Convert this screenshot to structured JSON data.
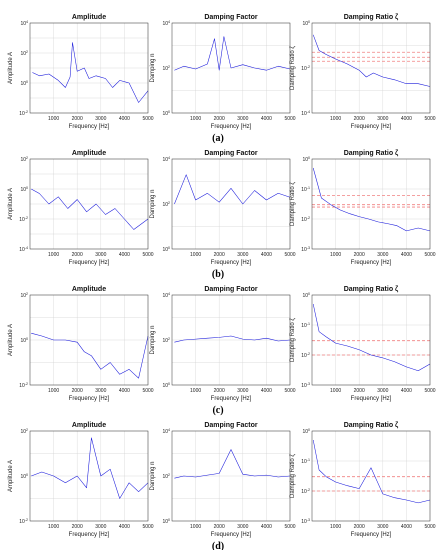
{
  "figure": {
    "row_labels": [
      "(a)",
      "(b)",
      "(c)",
      "(d)"
    ],
    "colors": {
      "series": "#1a1adb",
      "reference_line": "#f08080",
      "grid": "#d4d4d4"
    }
  },
  "chart_data": [
    {
      "row": "a",
      "type": "line",
      "title": "Amplitude",
      "xlabel": "Frequency [Hz]",
      "ylabel": "Amplitude A",
      "xlim": [
        0,
        5000
      ],
      "ylim": [
        0.01,
        10000
      ],
      "log_y": true,
      "xticks": [
        "1000",
        "2000",
        "3000",
        "4000",
        "5000"
      ],
      "yticks": [
        "10^{-2}",
        "10^{0}",
        "10^{2}",
        "10^{4}"
      ],
      "grid": true,
      "series": [
        {
          "x": [
            100,
            400,
            800,
            1200,
            1500,
            1700,
            1800,
            2000,
            2300,
            2500,
            2800,
            3200,
            3500,
            3800,
            4200,
            4600,
            5000
          ],
          "y": [
            5,
            3,
            4,
            1.5,
            0.5,
            2.5,
            500,
            6,
            10,
            2,
            3,
            2,
            0.5,
            1.5,
            1,
            0.05,
            0.3
          ]
        }
      ]
    },
    {
      "row": "a",
      "type": "line",
      "title": "Damping Factor",
      "xlabel": "Frequency [Hz]",
      "ylabel": "Damping n",
      "xlim": [
        0,
        5000
      ],
      "ylim": [
        1,
        10000
      ],
      "log_y": true,
      "xticks": [
        "1000",
        "2000",
        "3000",
        "4000",
        "5000"
      ],
      "yticks": [
        "10^{0}",
        "10^{2}",
        "10^{4}"
      ],
      "grid": true,
      "series": [
        {
          "x": [
            100,
            500,
            1000,
            1500,
            1800,
            2000,
            2200,
            2500,
            3000,
            3500,
            4000,
            4500,
            5000
          ],
          "y": [
            80,
            120,
            90,
            150,
            2000,
            80,
            2500,
            100,
            140,
            100,
            80,
            120,
            90
          ]
        }
      ]
    },
    {
      "row": "a",
      "type": "line",
      "title": "Damping Ratio ζ",
      "xlabel": "Frequency [Hz]",
      "ylabel": "Damping Ratio ζ",
      "xlim": [
        0,
        5000
      ],
      "ylim": [
        0.0001,
        1
      ],
      "log_y": true,
      "xticks": [
        "1000",
        "2000",
        "3000",
        "4000",
        "5000"
      ],
      "yticks": [
        "10^{-4}",
        "10^{-2}",
        "10^{0}"
      ],
      "grid": true,
      "reference_lines": [
        0.05,
        0.03,
        0.02
      ],
      "series": [
        {
          "x": [
            50,
            300,
            600,
            1000,
            1500,
            2000,
            2300,
            2600,
            3000,
            3500,
            4000,
            4500,
            5000
          ],
          "y": [
            0.3,
            0.06,
            0.04,
            0.025,
            0.015,
            0.008,
            0.004,
            0.006,
            0.004,
            0.003,
            0.002,
            0.002,
            0.0015
          ]
        }
      ]
    },
    {
      "row": "b",
      "type": "line",
      "title": "Amplitude",
      "xlabel": "Frequency [Hz]",
      "ylabel": "Amplitude A",
      "xlim": [
        0,
        5000
      ],
      "ylim": [
        0.0001,
        100
      ],
      "log_y": true,
      "xticks": [
        "1000",
        "2000",
        "3000",
        "4000",
        "5000"
      ],
      "yticks": [
        "10^{-4}",
        "10^{-2}",
        "10^{0}",
        "10^{2}"
      ],
      "grid": true,
      "series": [
        {
          "x": [
            50,
            400,
            800,
            1200,
            1600,
            2000,
            2400,
            2800,
            3200,
            3600,
            4000,
            4400,
            5000
          ],
          "y": [
            1,
            0.5,
            0.1,
            0.3,
            0.05,
            0.2,
            0.03,
            0.1,
            0.02,
            0.05,
            0.01,
            0.002,
            0.01
          ]
        }
      ]
    },
    {
      "row": "b",
      "type": "line",
      "title": "Damping Factor",
      "xlabel": "Frequency [Hz]",
      "ylabel": "Damping n",
      "xlim": [
        0,
        5000
      ],
      "ylim": [
        1,
        10000
      ],
      "log_y": true,
      "xticks": [
        "1000",
        "2000",
        "3000",
        "4000",
        "5000"
      ],
      "yticks": [
        "10^{0}",
        "10^{2}",
        "10^{4}"
      ],
      "grid": true,
      "series": [
        {
          "x": [
            100,
            600,
            1000,
            1500,
            2000,
            2500,
            3000,
            3500,
            4000,
            4500,
            5000
          ],
          "y": [
            100,
            2000,
            150,
            300,
            120,
            500,
            100,
            400,
            150,
            300,
            200
          ]
        }
      ]
    },
    {
      "row": "b",
      "type": "line",
      "title": "Damping Ratio ζ",
      "xlabel": "Frequency [Hz]",
      "ylabel": "Damping Ratio ζ",
      "xlim": [
        0,
        5000
      ],
      "ylim": [
        0.001,
        1
      ],
      "log_y": true,
      "xticks": [
        "1000",
        "2000",
        "3000",
        "4000",
        "5000"
      ],
      "yticks": [
        "10^{-3}",
        "10^{-2}",
        "10^{-1}",
        "10^{0}"
      ],
      "grid": true,
      "reference_lines": [
        0.06,
        0.03,
        0.025
      ],
      "series": [
        {
          "x": [
            50,
            400,
            800,
            1200,
            1600,
            2000,
            2400,
            2800,
            3200,
            3600,
            4000,
            4500,
            5000
          ],
          "y": [
            0.5,
            0.05,
            0.03,
            0.02,
            0.015,
            0.012,
            0.01,
            0.008,
            0.007,
            0.006,
            0.004,
            0.005,
            0.004
          ]
        }
      ]
    },
    {
      "row": "c",
      "type": "line",
      "title": "Amplitude",
      "xlabel": "Frequency [Hz]",
      "ylabel": "Amplitude A",
      "xlim": [
        0,
        5000
      ],
      "ylim": [
        0.01,
        100
      ],
      "log_y": true,
      "xticks": [
        "1000",
        "2000",
        "3000",
        "4000",
        "5000"
      ],
      "yticks": [
        "10^{-2}",
        "10^{0}",
        "10^{2}"
      ],
      "grid": true,
      "series": [
        {
          "x": [
            50,
            500,
            1000,
            1500,
            2000,
            2300,
            2600,
            3000,
            3400,
            3800,
            4200,
            4600,
            5000
          ],
          "y": [
            2,
            1.5,
            1,
            1,
            0.8,
            0.3,
            0.2,
            0.05,
            0.1,
            0.03,
            0.05,
            0.02,
            1.5
          ]
        }
      ]
    },
    {
      "row": "c",
      "type": "line",
      "title": "Damping Factor",
      "xlabel": "Frequency [Hz]",
      "ylabel": "Damping n",
      "xlim": [
        0,
        5000
      ],
      "ylim": [
        1,
        10000
      ],
      "log_y": true,
      "xticks": [
        "1000",
        "2000",
        "3000",
        "4000",
        "5000"
      ],
      "yticks": [
        "10^{0}",
        "10^{2}",
        "10^{4}"
      ],
      "grid": true,
      "series": [
        {
          "x": [
            100,
            500,
            1000,
            1500,
            2000,
            2500,
            3000,
            3500,
            4000,
            4500,
            5000
          ],
          "y": [
            80,
            100,
            110,
            120,
            130,
            150,
            110,
            100,
            120,
            90,
            100
          ]
        }
      ]
    },
    {
      "row": "c",
      "type": "line",
      "title": "Damping Ratio ζ",
      "xlabel": "Frequency [Hz]",
      "ylabel": "Damping Ratio ζ",
      "xlim": [
        0,
        5000
      ],
      "ylim": [
        0.001,
        1
      ],
      "log_y": true,
      "xticks": [
        "1000",
        "2000",
        "3000",
        "4000",
        "5000"
      ],
      "yticks": [
        "10^{-3}",
        "10^{-2}",
        "10^{-1}",
        "10^{0}"
      ],
      "grid": true,
      "reference_lines": [
        0.03,
        0.01
      ],
      "series": [
        {
          "x": [
            50,
            300,
            600,
            1000,
            1500,
            2000,
            2500,
            3000,
            3500,
            4000,
            4500,
            5000
          ],
          "y": [
            0.5,
            0.06,
            0.04,
            0.025,
            0.02,
            0.015,
            0.01,
            0.008,
            0.006,
            0.004,
            0.003,
            0.005
          ]
        }
      ]
    },
    {
      "row": "d",
      "type": "line",
      "title": "Amplitude",
      "xlabel": "Frequency [Hz]",
      "ylabel": "Amplitude A",
      "xlim": [
        0,
        5000
      ],
      "ylim": [
        0.01,
        100
      ],
      "log_y": true,
      "xticks": [
        "1000",
        "2000",
        "3000",
        "4000",
        "5000"
      ],
      "yticks": [
        "10^{-2}",
        "10^{0}",
        "10^{2}"
      ],
      "grid": true,
      "series": [
        {
          "x": [
            50,
            500,
            1000,
            1500,
            2000,
            2400,
            2600,
            3000,
            3400,
            3800,
            4200,
            4600,
            5000
          ],
          "y": [
            1,
            1.5,
            1,
            0.5,
            1,
            0.3,
            50,
            1,
            2,
            0.1,
            0.5,
            0.2,
            0.5
          ]
        }
      ]
    },
    {
      "row": "d",
      "type": "line",
      "title": "Damping Factor",
      "xlabel": "Frequency [Hz]",
      "ylabel": "Damping n",
      "xlim": [
        0,
        5000
      ],
      "ylim": [
        1,
        10000
      ],
      "log_y": true,
      "xticks": [
        "1000",
        "2000",
        "3000",
        "4000",
        "5000"
      ],
      "yticks": [
        "10^{0}",
        "10^{2}",
        "10^{4}"
      ],
      "grid": true,
      "series": [
        {
          "x": [
            100,
            500,
            1000,
            1500,
            2000,
            2500,
            3000,
            3500,
            4000,
            4500,
            5000
          ],
          "y": [
            80,
            100,
            90,
            110,
            130,
            1500,
            120,
            100,
            110,
            90,
            100
          ]
        }
      ]
    },
    {
      "row": "d",
      "type": "line",
      "title": "Damping Ratio ζ",
      "xlabel": "Frequency [Hz]",
      "ylabel": "Damping Ratio ζ",
      "xlim": [
        0,
        5000
      ],
      "ylim": [
        0.001,
        1
      ],
      "log_y": true,
      "xticks": [
        "1000",
        "2000",
        "3000",
        "4000",
        "5000"
      ],
      "yticks": [
        "10^{-3}",
        "10^{-2}",
        "10^{-1}",
        "10^{0}"
      ],
      "grid": true,
      "reference_lines": [
        0.03,
        0.01
      ],
      "series": [
        {
          "x": [
            50,
            300,
            600,
            1000,
            1500,
            2000,
            2500,
            3000,
            3500,
            4000,
            4500,
            5000
          ],
          "y": [
            0.5,
            0.05,
            0.03,
            0.02,
            0.015,
            0.012,
            0.06,
            0.008,
            0.006,
            0.005,
            0.004,
            0.005
          ]
        }
      ]
    }
  ]
}
